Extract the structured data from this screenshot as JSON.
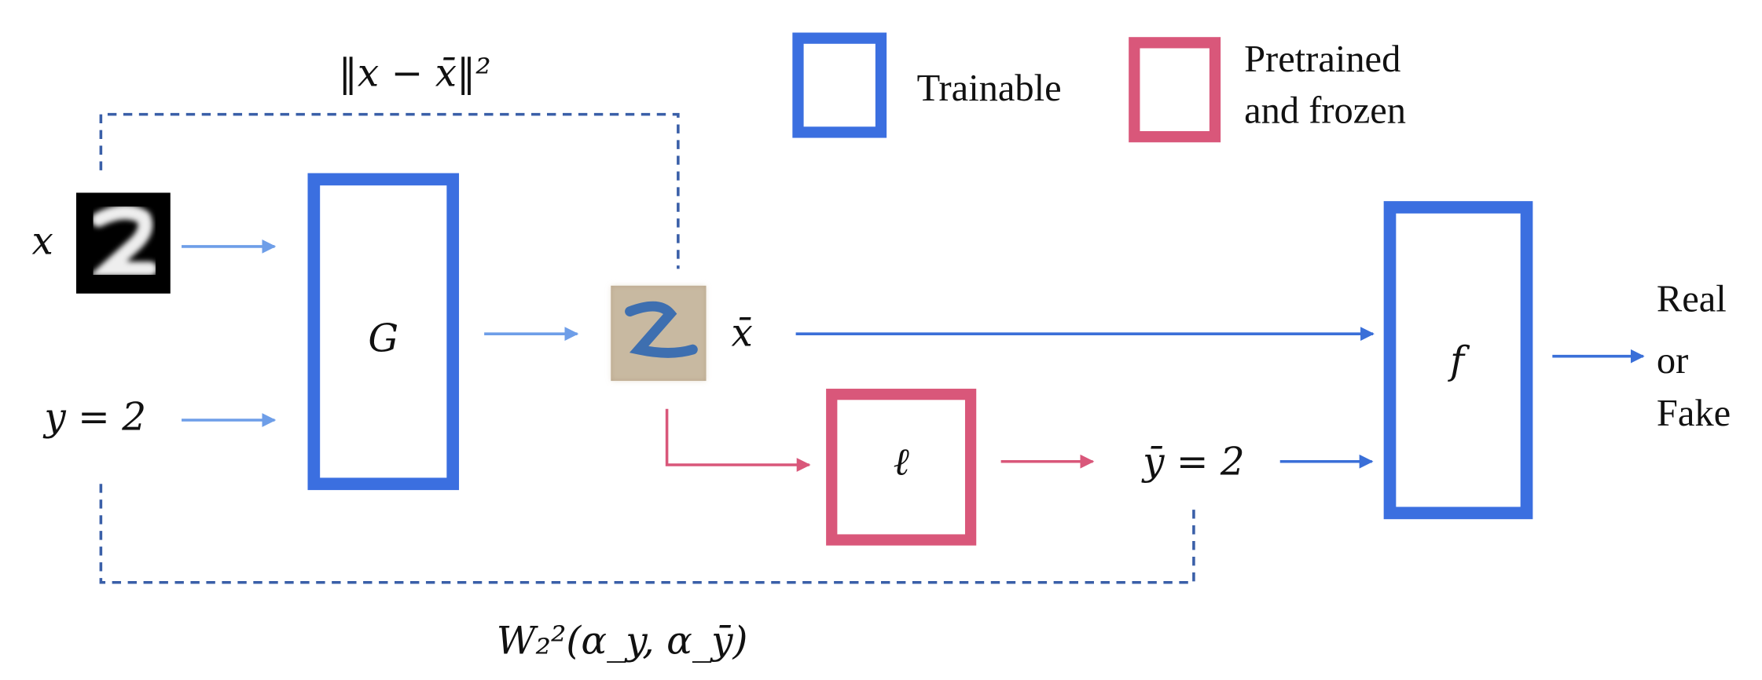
{
  "legend": {
    "items": [
      {
        "label": "Trainable"
      },
      {
        "label_lines": [
          "Pretrained",
          "and frozen"
        ]
      }
    ]
  },
  "inputs": {
    "image_label": "x",
    "class_label": "y = 2"
  },
  "nodes": [
    {
      "label": "G"
    },
    {
      "label": "ℓ"
    },
    {
      "label": "f"
    }
  ],
  "generated": {
    "image_label": "x̄",
    "class_label": "ȳ = 2"
  },
  "output": {
    "label_lines": [
      "Real",
      "or",
      "Fake"
    ]
  },
  "losses": {
    "reconstruction": "‖x − x̄‖²",
    "wasserstein": "W₂²(α_y, α_ȳ)"
  }
}
